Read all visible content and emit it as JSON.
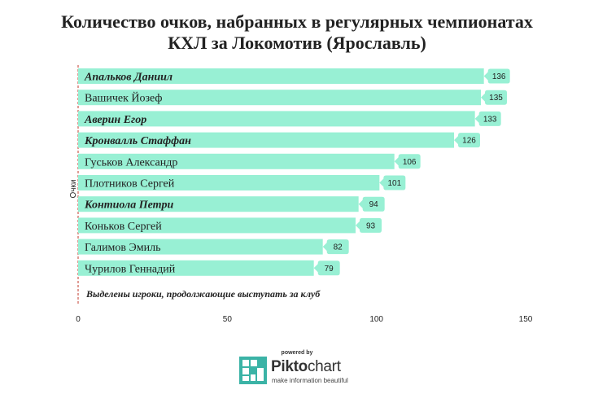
{
  "chart_data": {
    "type": "bar",
    "orientation": "horizontal",
    "title_line1": "Количество очков, набранных в регулярных чемпионатах",
    "title_line2": "КХЛ за Локомотив (Ярославль)",
    "ylabel": "Очки",
    "xlim": [
      0,
      150
    ],
    "xticks": [
      "0",
      "50",
      "100",
      "150"
    ],
    "categories": [
      "Апальков Даниил",
      "Вашичек Йозеф",
      "Аверин Егор",
      "Кронвалль Стаффан",
      "Гуськов Александр",
      "Плотников Сергей",
      "Контиола Петри",
      "Коньков Сергей",
      "Галимов Эмиль",
      "Чурилов Геннадий"
    ],
    "values": [
      136,
      135,
      133,
      126,
      106,
      101,
      94,
      93,
      82,
      79
    ],
    "highlighted": [
      true,
      false,
      true,
      true,
      false,
      false,
      true,
      false,
      false,
      false
    ],
    "annotation": "Выделены игроки, продолжающие выступать за клуб",
    "colors": {
      "bar": "#98f0d4",
      "label_box": "#98f0d4",
      "axis": "#c0392b",
      "text": "#222222"
    }
  },
  "footer": {
    "powered_by": "powered by",
    "brand_part1": "Pikto",
    "brand_part2": "chart",
    "tagline": "make information beautiful"
  }
}
